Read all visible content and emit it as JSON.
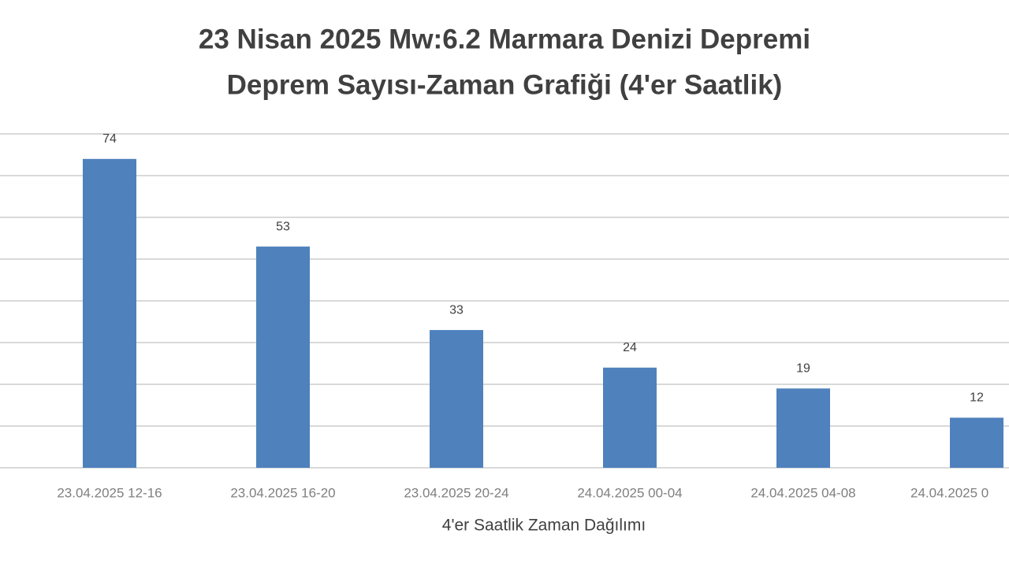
{
  "chart_data": {
    "type": "bar",
    "title": [
      "23 Nisan 2025 Mw:6.2 Marmara Denizi Depremi",
      "Deprem Sayısı-Zaman Grafiği (4'er Saatlik)"
    ],
    "x_label": "4'er Saatlik Zaman Dağılımı",
    "categories": [
      "23.04.2025 12-16",
      "23.04.2025 16-20",
      "23.04.2025 20-24",
      "24.04.2025 00-04",
      "24.04.2025 04-08",
      "24.04.2025 0"
    ],
    "values": [
      74,
      53,
      33,
      24,
      19,
      12
    ],
    "color": "#4f81bd",
    "ylim": [
      0,
      80
    ],
    "yticks": [
      0,
      10,
      20,
      30,
      40,
      50,
      60,
      70,
      80
    ],
    "grid": true
  }
}
